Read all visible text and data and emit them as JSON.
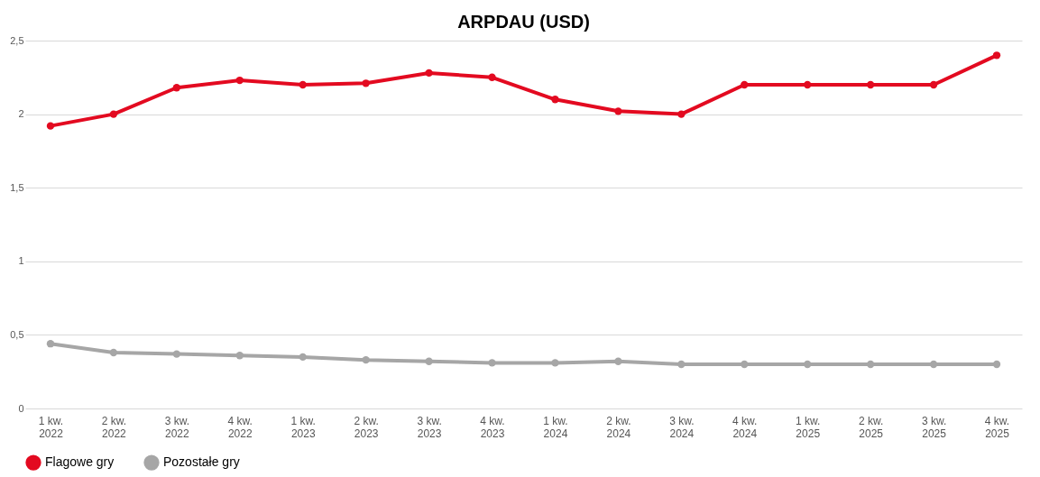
{
  "chart_data": {
    "type": "line",
    "title": "ARPDAU (USD)",
    "categories": [
      "1 kw. 2022",
      "2 kw. 2022",
      "3 kw. 2022",
      "4 kw. 2022",
      "1 kw. 2023",
      "2 kw. 2023",
      "3 kw. 2023",
      "4 kw. 2023",
      "1 kw. 2024",
      "2 kw. 2024",
      "3 kw. 2024",
      "4 kw. 2024",
      "1 kw. 2025",
      "2 kw. 2025",
      "3 kw. 2025",
      "4 kw. 2025"
    ],
    "series": [
      {
        "name": "Flagowe gry",
        "color": "#e30a20",
        "values": [
          1.92,
          2.0,
          2.18,
          2.23,
          2.2,
          2.21,
          2.28,
          2.25,
          2.1,
          2.02,
          2.0,
          2.2,
          2.2,
          2.2,
          2.2,
          2.4
        ]
      },
      {
        "name": "Pozostałe gry",
        "color": "#a6a6a6",
        "values": [
          0.44,
          0.38,
          0.37,
          0.36,
          0.35,
          0.33,
          0.32,
          0.31,
          0.31,
          0.32,
          0.3,
          0.3,
          0.3,
          0.3,
          0.3,
          0.3
        ]
      }
    ],
    "ylim": [
      0,
      2.5
    ],
    "yticks": [
      0,
      {
        "value": 0.5,
        "label": "0,5"
      },
      1,
      {
        "value": 1.5,
        "label": "1,5"
      },
      2,
      {
        "value": 2.5,
        "label": "2,5"
      }
    ],
    "grid": "y",
    "legend": "bottom",
    "marker": "circle",
    "line_style": "solid"
  }
}
